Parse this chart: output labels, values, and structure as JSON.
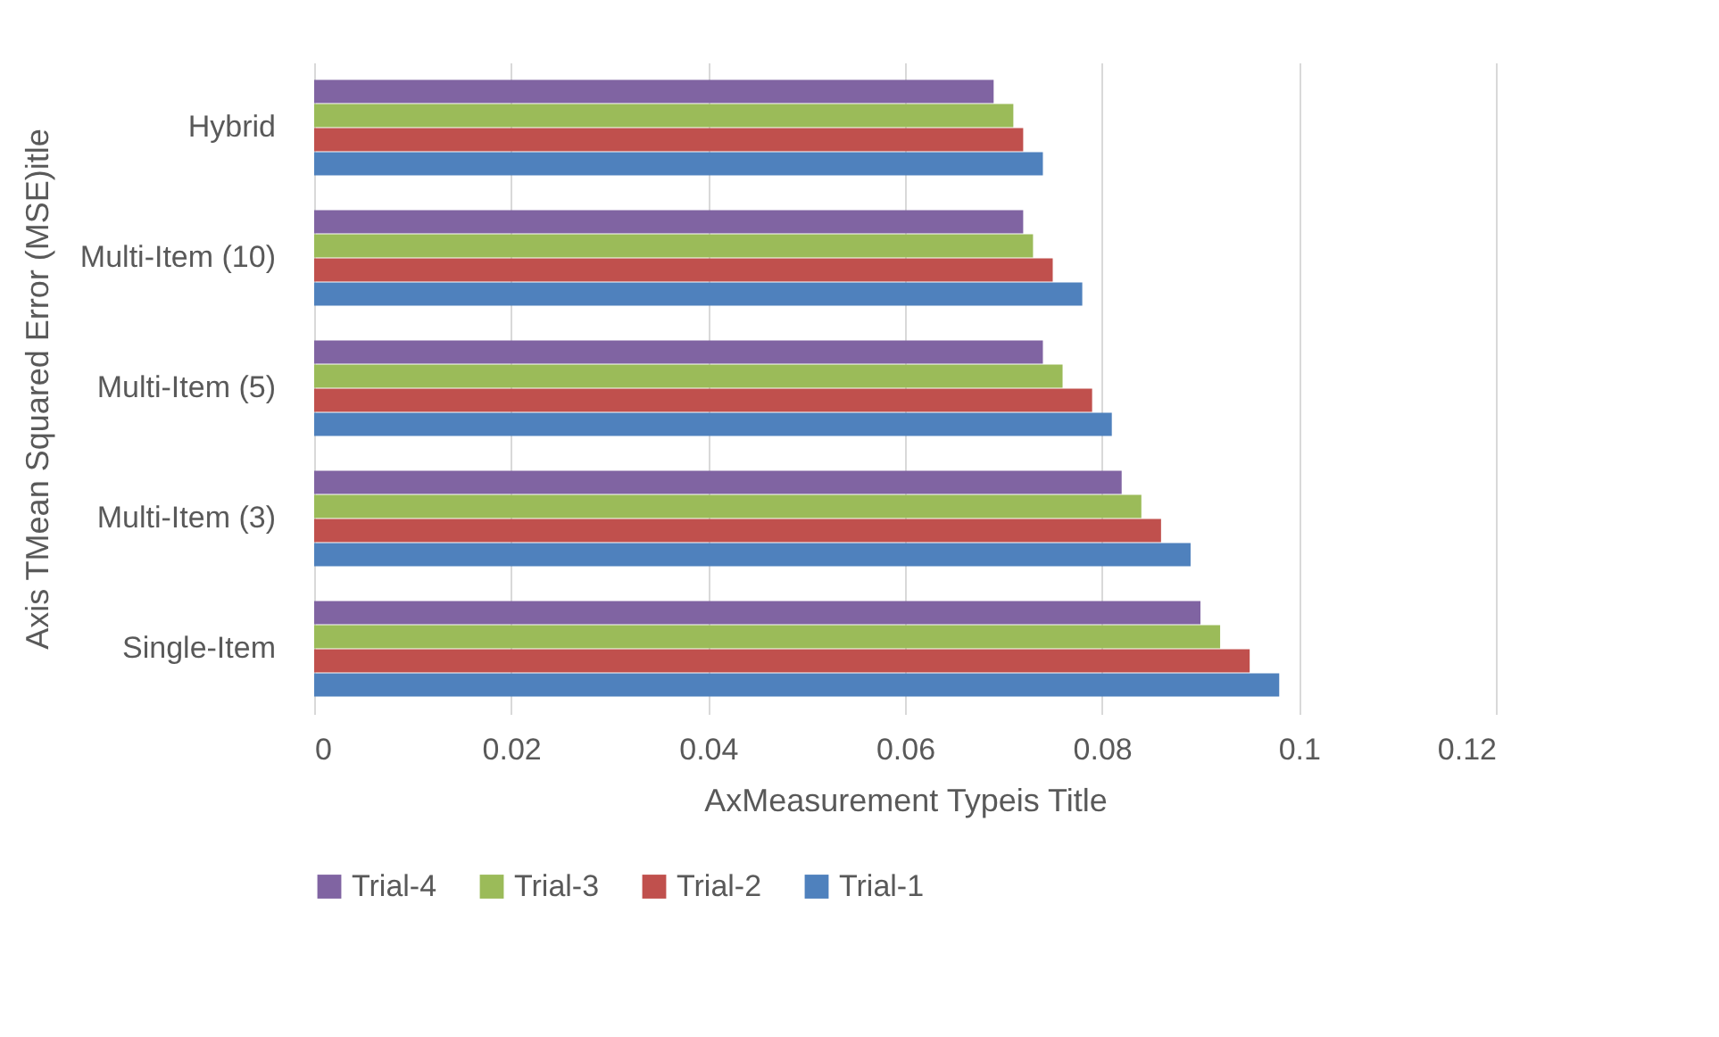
{
  "chart_data": {
    "type": "bar",
    "orientation": "horizontal",
    "xlabel": "AxMeasurement Typeis Title",
    "ylabel": "Axis TMean Squared Error (MSE)itle",
    "categories": [
      "Hybrid",
      "Multi-Item (10)",
      "Multi-Item (5)",
      "Multi-Item (3)",
      "Single-Item"
    ],
    "series": [
      {
        "name": "Trial-4",
        "color": "#8064a2",
        "values": [
          0.069,
          0.072,
          0.074,
          0.082,
          0.09
        ]
      },
      {
        "name": "Trial-3",
        "color": "#9bbb59",
        "values": [
          0.071,
          0.073,
          0.076,
          0.084,
          0.092
        ]
      },
      {
        "name": "Trial-2",
        "color": "#c0504d",
        "values": [
          0.072,
          0.075,
          0.079,
          0.086,
          0.095
        ]
      },
      {
        "name": "Trial-1",
        "color": "#4f81bd",
        "values": [
          0.074,
          0.078,
          0.081,
          0.089,
          0.098
        ]
      }
    ],
    "xlim": [
      0,
      0.12
    ],
    "xticks": [
      0,
      0.02,
      0.04,
      0.06,
      0.08,
      0.1,
      0.12
    ],
    "grid": "x",
    "legend": "bottom"
  }
}
